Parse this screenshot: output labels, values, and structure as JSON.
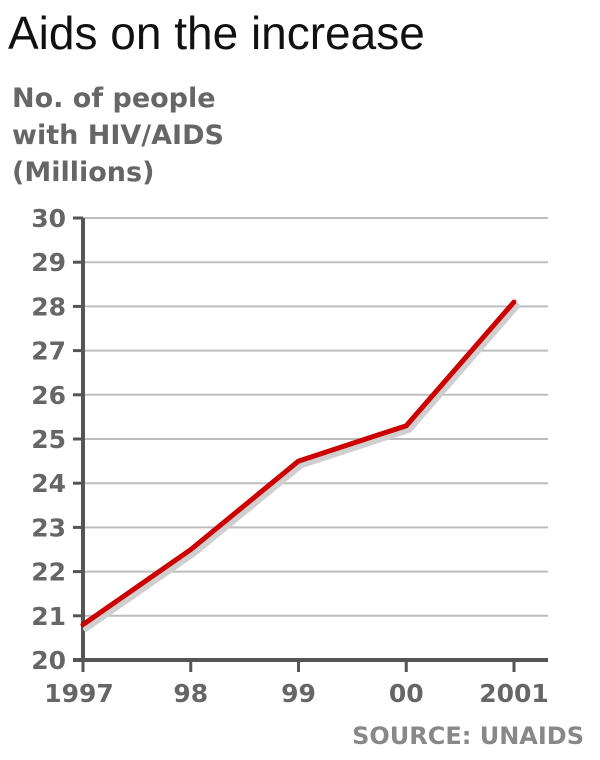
{
  "chart_data": {
    "type": "line",
    "title": "Aids on the increase",
    "ylabel_lines": [
      "No. of people",
      "with HIV/AIDS",
      "(Millions)"
    ],
    "xlabel": "",
    "categories": [
      "1997",
      "98",
      "99",
      "00",
      "2001"
    ],
    "series": [
      {
        "values": [
          20.8,
          22.5,
          24.5,
          25.3,
          28.1
        ],
        "color": "#cc0000"
      }
    ],
    "ylim": [
      20,
      30
    ],
    "yticks": [
      20,
      21,
      22,
      23,
      24,
      25,
      26,
      27,
      28,
      29,
      30
    ],
    "grid": true,
    "source": "SOURCE: UNAIDS"
  }
}
